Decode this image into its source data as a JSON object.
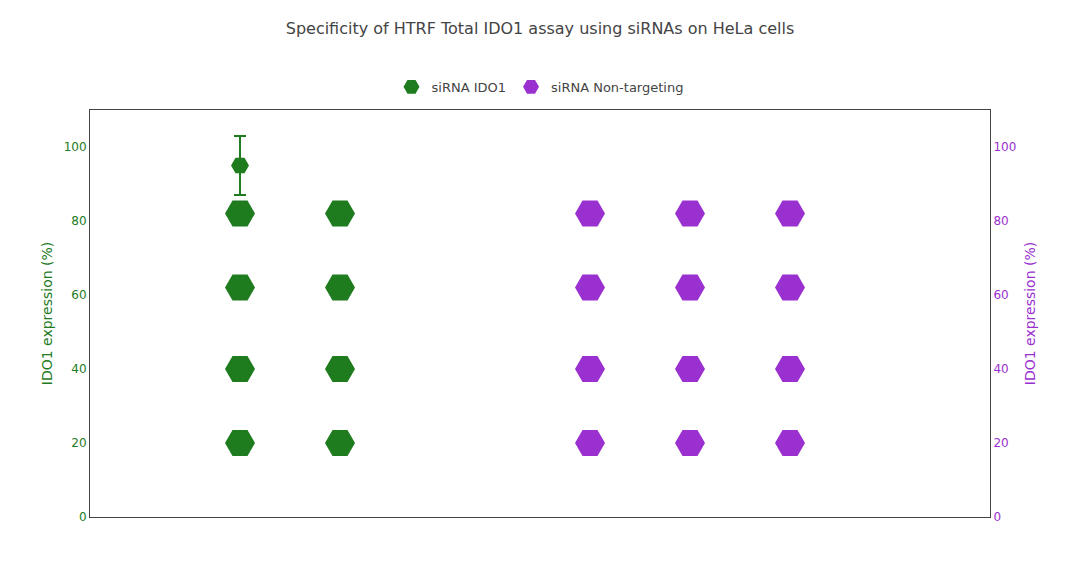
{
  "chart_data": {
    "type": "scatter",
    "title": "Specificity of HTRF Total IDO1 assay using siRNAs on HeLa cells",
    "ylabel": "IDO1 expression (%)",
    "y2label": "IDO1 expression (%)",
    "marker": "hexagon",
    "series": [
      {
        "name": "siRNA IDO1",
        "color": "#1e7b1e",
        "x": [
          1.0,
          1.0,
          1.0,
          1.0,
          2.0,
          2.0,
          2.0,
          2.0
        ],
        "values": [
          20,
          40,
          62,
          82,
          20,
          40,
          62,
          82
        ]
      },
      {
        "name": "siRNA Non-targeting",
        "color": "#9b30d0",
        "x": [
          4.5,
          4.5,
          4.5,
          4.5,
          5.5,
          5.5,
          5.5,
          5.5,
          6.5,
          6.5,
          6.5,
          6.5
        ],
        "values": [
          20,
          40,
          62,
          82,
          20,
          40,
          62,
          82,
          20,
          40,
          62,
          82
        ]
      },
      {
        "color": "#1e7b1e",
        "x": [
          1.0
        ],
        "values": [
          95
        ],
        "errors": [
          8
        ]
      }
    ],
    "xlim": [
      -0.5,
      8.5
    ],
    "ylim": [
      0,
      110
    ],
    "yticks": [
      0,
      20,
      40,
      60,
      80,
      100
    ],
    "y2lim": [
      0,
      110
    ],
    "y2ticks": [
      0,
      20,
      40,
      60,
      80,
      100
    ],
    "tick_labels": "y",
    "grid": false,
    "legend": "top"
  }
}
